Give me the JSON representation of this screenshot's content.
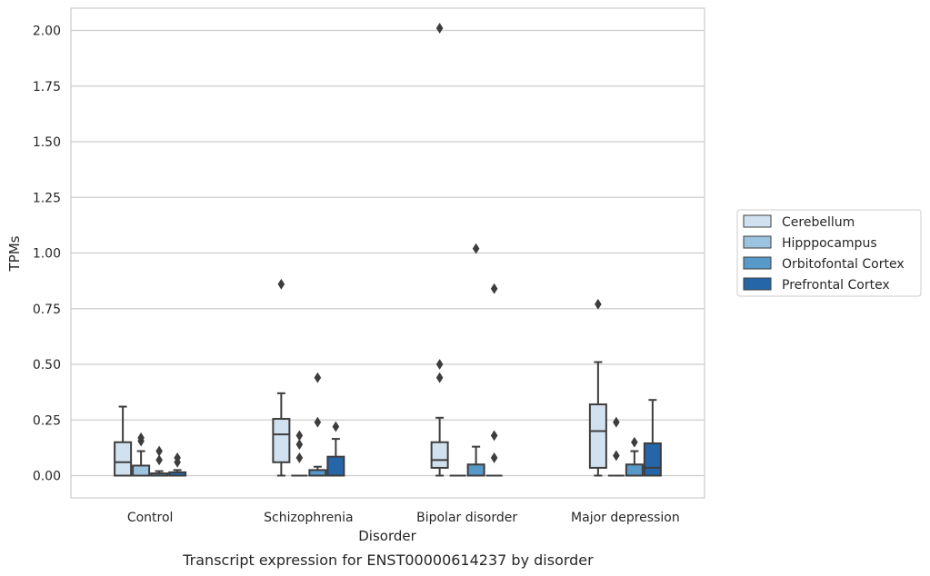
{
  "chart_data": {
    "type": "box",
    "title": "",
    "caption": "Transcript expression for ENST00000614237 by disorder",
    "xlabel": "Disorder",
    "ylabel": "TPMs",
    "ylim": [
      -0.1,
      2.1
    ],
    "yticks": [
      0.0,
      0.25,
      0.5,
      0.75,
      1.0,
      1.25,
      1.5,
      1.75,
      2.0
    ],
    "ytick_labels": [
      "0.00",
      "0.25",
      "0.50",
      "0.75",
      "1.00",
      "1.25",
      "1.50",
      "1.75",
      "2.00"
    ],
    "grid": "horizontal",
    "legend_position": "right",
    "categories": [
      "Control",
      "Schizophrenia",
      "Bipolar disorder",
      "Major depression"
    ],
    "series": [
      {
        "name": "Cerebellum",
        "color": "#d1e1f0",
        "boxes": [
          {
            "min": 0.0,
            "q1": 0.0,
            "median": 0.06,
            "q3": 0.15,
            "max": 0.31,
            "outliers": []
          },
          {
            "min": 0.0,
            "q1": 0.06,
            "median": 0.185,
            "q3": 0.255,
            "max": 0.37,
            "outliers": [
              0.86
            ]
          },
          {
            "min": 0.0,
            "q1": 0.035,
            "median": 0.07,
            "q3": 0.15,
            "max": 0.26,
            "outliers": [
              0.44,
              0.5,
              2.01
            ]
          },
          {
            "min": 0.0,
            "q1": 0.035,
            "median": 0.2,
            "q3": 0.32,
            "max": 0.51,
            "outliers": [
              0.77
            ]
          }
        ]
      },
      {
        "name": "Hipppocampus",
        "color": "#9cc3df",
        "boxes": [
          {
            "min": 0.0,
            "q1": 0.0,
            "median": 0.0,
            "q3": 0.045,
            "max": 0.11,
            "outliers": [
              0.155,
              0.17
            ]
          },
          {
            "min": 0.0,
            "q1": 0.0,
            "median": 0.0,
            "q3": 0.0,
            "max": 0.0,
            "outliers": [
              0.08,
              0.14,
              0.18
            ]
          },
          {
            "min": 0.0,
            "q1": 0.0,
            "median": 0.0,
            "q3": 0.0,
            "max": 0.0,
            "outliers": []
          },
          {
            "min": 0.0,
            "q1": 0.0,
            "median": 0.0,
            "q3": 0.0,
            "max": 0.0,
            "outliers": [
              0.09,
              0.24
            ]
          }
        ]
      },
      {
        "name": "Orbitofontal Cortex",
        "color": "#5799c8",
        "boxes": [
          {
            "min": 0.0,
            "q1": 0.0,
            "median": 0.0,
            "q3": 0.01,
            "max": 0.02,
            "outliers": [
              0.07,
              0.11
            ]
          },
          {
            "min": 0.0,
            "q1": 0.0,
            "median": 0.0,
            "q3": 0.025,
            "max": 0.04,
            "outliers": [
              0.24,
              0.44
            ]
          },
          {
            "min": 0.0,
            "q1": 0.0,
            "median": 0.0,
            "q3": 0.05,
            "max": 0.13,
            "outliers": [
              1.02
            ]
          },
          {
            "min": 0.0,
            "q1": 0.0,
            "median": 0.0,
            "q3": 0.05,
            "max": 0.11,
            "outliers": [
              0.15
            ]
          }
        ]
      },
      {
        "name": "Prefrontal Cortex",
        "color": "#2566a9",
        "boxes": [
          {
            "min": 0.0,
            "q1": 0.0,
            "median": 0.0,
            "q3": 0.015,
            "max": 0.025,
            "outliers": [
              0.06,
              0.08
            ]
          },
          {
            "min": 0.0,
            "q1": 0.0,
            "median": 0.0,
            "q3": 0.085,
            "max": 0.165,
            "outliers": [
              0.22
            ]
          },
          {
            "min": 0.0,
            "q1": 0.0,
            "median": 0.0,
            "q3": 0.0,
            "max": 0.0,
            "outliers": [
              0.08,
              0.18,
              0.84
            ]
          },
          {
            "min": 0.0,
            "q1": 0.0,
            "median": 0.035,
            "q3": 0.145,
            "max": 0.34,
            "outliers": []
          }
        ]
      }
    ]
  }
}
